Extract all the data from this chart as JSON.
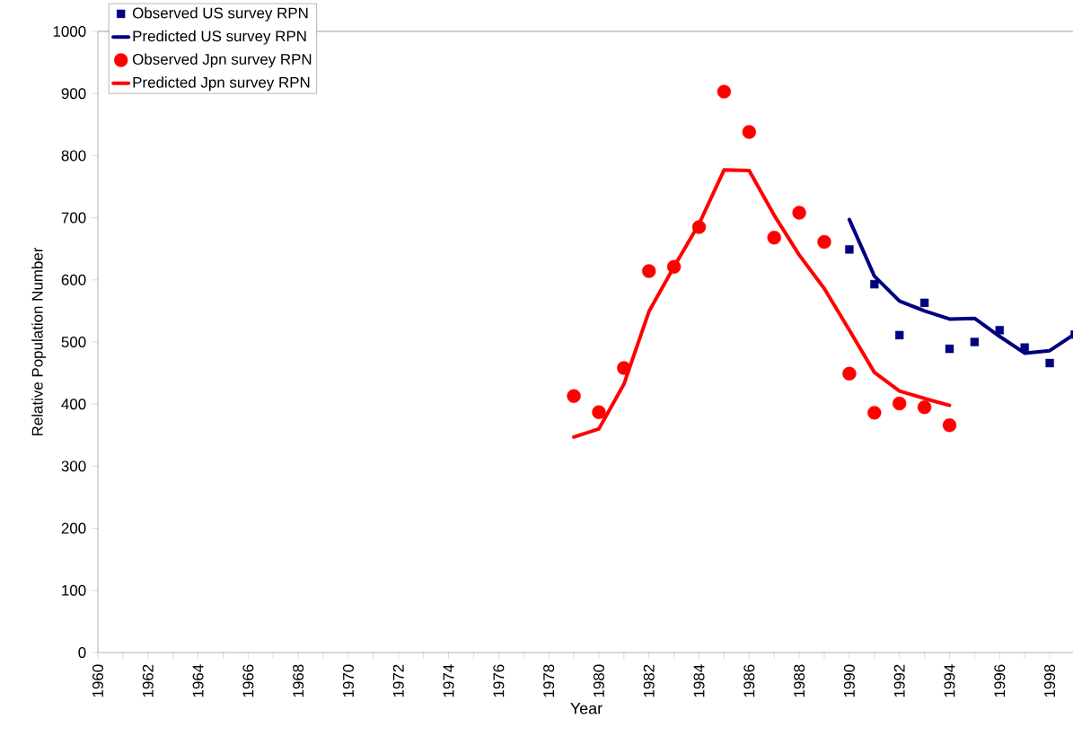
{
  "chart_data": {
    "type": "line",
    "xlabel": "Year",
    "ylabel": "Relative Population Number",
    "xlim": [
      1960,
      1999
    ],
    "ylim": [
      0,
      1000
    ],
    "xticks": [
      1960,
      1962,
      1964,
      1966,
      1968,
      1970,
      1972,
      1974,
      1976,
      1978,
      1980,
      1982,
      1984,
      1986,
      1988,
      1990,
      1992,
      1994,
      1996,
      1998
    ],
    "yticks": [
      0,
      100,
      200,
      300,
      400,
      500,
      600,
      700,
      800,
      900,
      1000
    ],
    "grid": false,
    "legend": "top left",
    "series": [
      {
        "name": "Observed US survey RPN",
        "type": "scatter",
        "marker": "square",
        "color": "#000080",
        "x": [
          1990,
          1991,
          1992,
          1993,
          1994,
          1995,
          1996,
          1997,
          1998,
          1999
        ],
        "values": [
          649,
          593,
          511,
          563,
          489,
          500,
          519,
          491,
          466,
          512
        ]
      },
      {
        "name": "Predicted US survey RPN",
        "marker": "none",
        "color": "#000080",
        "x": [
          1990,
          1991,
          1992,
          1993,
          1994,
          1995,
          1996,
          1997,
          1998,
          1999
        ],
        "values": [
          697,
          606,
          566,
          550,
          537,
          538,
          509,
          482,
          486,
          513
        ]
      },
      {
        "name": "Observed Jpn survey RPN",
        "type": "scatter",
        "marker": "circle",
        "color": "#ff0000",
        "x": [
          1979,
          1980,
          1981,
          1982,
          1983,
          1984,
          1985,
          1986,
          1987,
          1988,
          1989,
          1990,
          1991,
          1992,
          1993,
          1994
        ],
        "values": [
          413,
          387,
          458,
          614,
          621,
          685,
          903,
          838,
          668,
          708,
          661,
          449,
          386,
          401,
          395,
          366
        ]
      },
      {
        "name": "Predicted Jpn survey RPN",
        "marker": "none",
        "color": "#ff0000",
        "x": [
          1979,
          1980,
          1981,
          1982,
          1983,
          1984,
          1985,
          1986,
          1987,
          1988,
          1989,
          1990,
          1991,
          1992,
          1993,
          1994
        ],
        "values": [
          347,
          360,
          432,
          549,
          621,
          690,
          777,
          776,
          704,
          640,
          586,
          519,
          451,
          421,
          409,
          398
        ]
      }
    ]
  }
}
